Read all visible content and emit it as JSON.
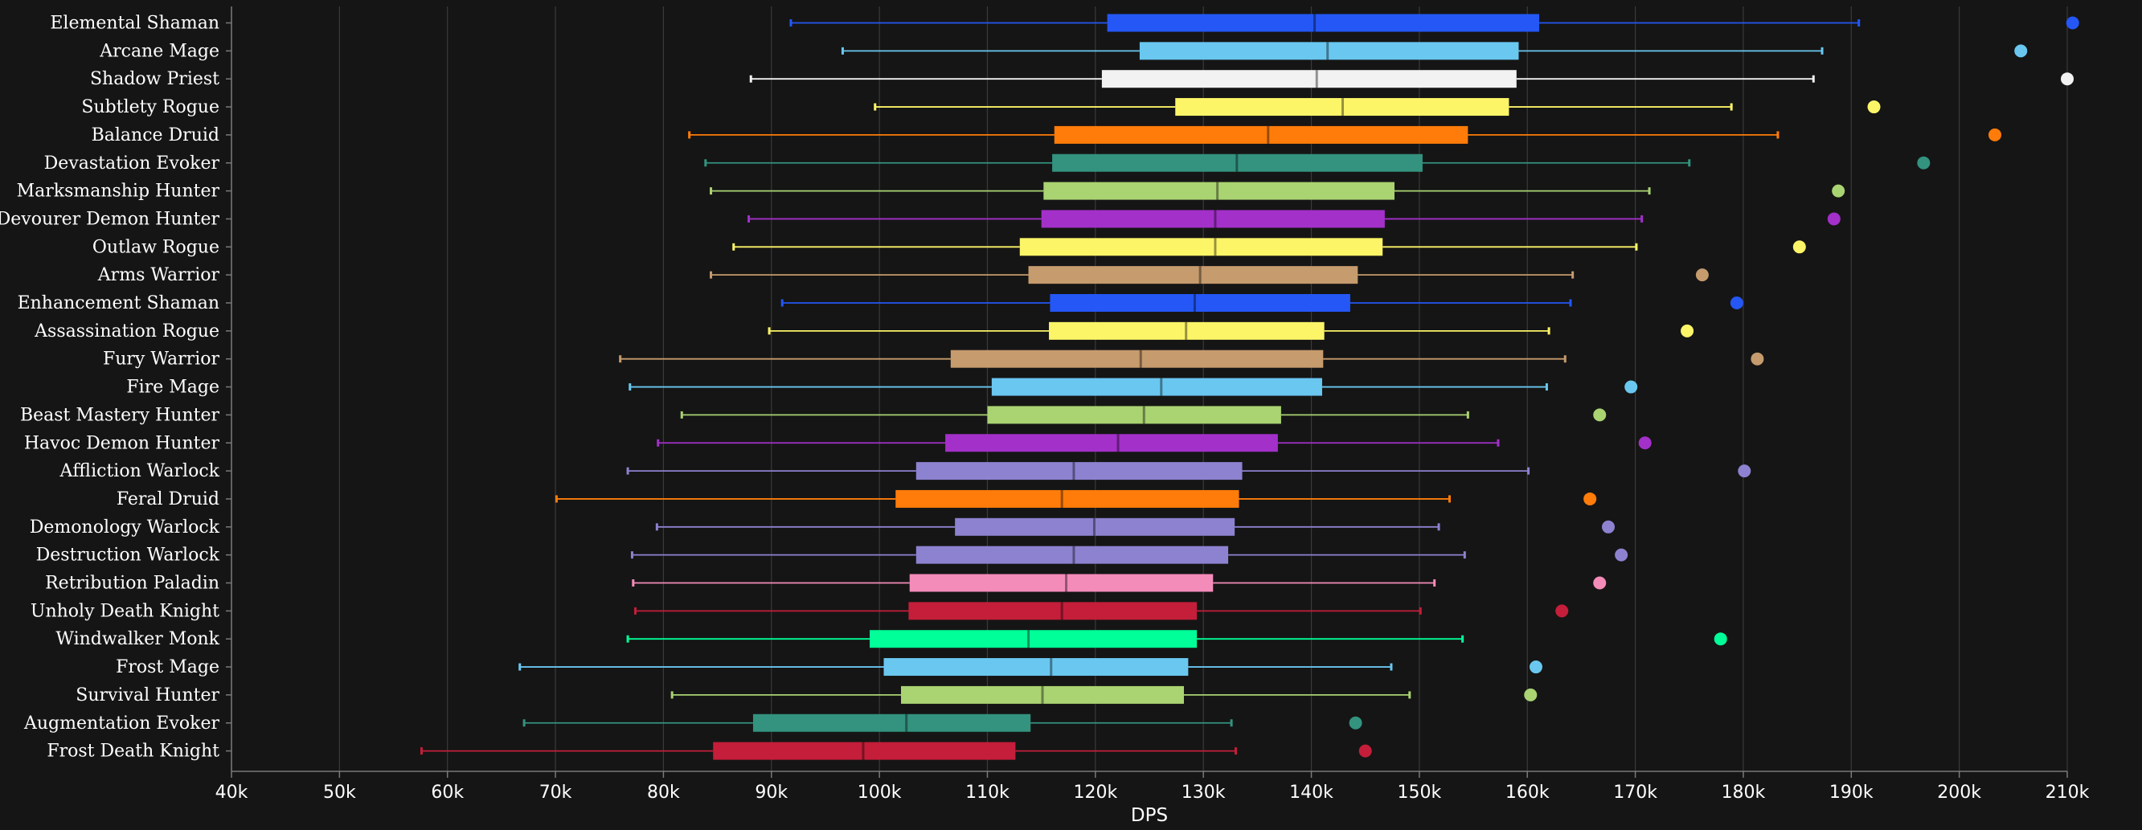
{
  "chart_data": {
    "type": "box",
    "orientation": "horizontal",
    "xlabel": "DPS",
    "xlim": [
      40000,
      210000
    ],
    "x_ticks": [
      40000,
      50000,
      60000,
      70000,
      80000,
      90000,
      100000,
      110000,
      120000,
      130000,
      140000,
      150000,
      160000,
      170000,
      180000,
      190000,
      200000,
      210000
    ],
    "x_tick_labels": [
      "40k",
      "50k",
      "60k",
      "70k",
      "80k",
      "90k",
      "100k",
      "110k",
      "120k",
      "130k",
      "140k",
      "150k",
      "160k",
      "170k",
      "180k",
      "190k",
      "200k",
      "210k"
    ],
    "grid": true,
    "legend": "none",
    "series": [
      {
        "name": "Elemental Shaman",
        "color": "#2457f5",
        "whisker_low": 91800,
        "q1": 121100,
        "median": 140300,
        "q3": 161100,
        "whisker_high": 190700,
        "max": 210500
      },
      {
        "name": "Arcane Mage",
        "color": "#6ac7f0",
        "whisker_low": 96600,
        "q1": 124100,
        "median": 141500,
        "q3": 159200,
        "whisker_high": 187300,
        "max": 205700
      },
      {
        "name": "Shadow Priest",
        "color": "#f2f2f2",
        "whisker_low": 88100,
        "q1": 120600,
        "median": 140500,
        "q3": 159000,
        "whisker_high": 186500,
        "max": 210000
      },
      {
        "name": "Subtlety Rogue",
        "color": "#fdf568",
        "whisker_low": 99600,
        "q1": 127400,
        "median": 142900,
        "q3": 158300,
        "whisker_high": 178900,
        "max": 192100
      },
      {
        "name": "Balance Druid",
        "color": "#ff7c0a",
        "whisker_low": 82400,
        "q1": 116200,
        "median": 136000,
        "q3": 154500,
        "whisker_high": 183200,
        "max": 203300
      },
      {
        "name": "Devastation Evoker",
        "color": "#33937f",
        "whisker_low": 83900,
        "q1": 116000,
        "median": 133100,
        "q3": 150300,
        "whisker_high": 175000,
        "max": 196700
      },
      {
        "name": "Marksmanship Hunter",
        "color": "#aad372",
        "whisker_low": 84400,
        "q1": 115200,
        "median": 131300,
        "q3": 147700,
        "whisker_high": 171300,
        "max": 188800
      },
      {
        "name": "Devourer Demon Hunter",
        "color": "#a330c9",
        "whisker_low": 87900,
        "q1": 115000,
        "median": 131100,
        "q3": 146800,
        "whisker_high": 170600,
        "max": 188400
      },
      {
        "name": "Outlaw Rogue",
        "color": "#fdf568",
        "whisker_low": 86500,
        "q1": 113000,
        "median": 131100,
        "q3": 146600,
        "whisker_high": 170100,
        "max": 185200
      },
      {
        "name": "Arms Warrior",
        "color": "#c69b6d",
        "whisker_low": 84400,
        "q1": 113800,
        "median": 129700,
        "q3": 144300,
        "whisker_high": 164200,
        "max": 176200
      },
      {
        "name": "Enhancement Shaman",
        "color": "#2457f5",
        "whisker_low": 91000,
        "q1": 115800,
        "median": 129200,
        "q3": 143600,
        "whisker_high": 164000,
        "max": 179400
      },
      {
        "name": "Assassination Rogue",
        "color": "#fdf568",
        "whisker_low": 89800,
        "q1": 115700,
        "median": 128400,
        "q3": 141200,
        "whisker_high": 162000,
        "max": 174800
      },
      {
        "name": "Fury Warrior",
        "color": "#c69b6d",
        "whisker_low": 76000,
        "q1": 106600,
        "median": 124200,
        "q3": 141100,
        "whisker_high": 163500,
        "max": 181300
      },
      {
        "name": "Fire Mage",
        "color": "#6ac7f0",
        "whisker_low": 76900,
        "q1": 110400,
        "median": 126100,
        "q3": 141000,
        "whisker_high": 161800,
        "max": 169600
      },
      {
        "name": "Beast Mastery Hunter",
        "color": "#aad372",
        "whisker_low": 81700,
        "q1": 110000,
        "median": 124500,
        "q3": 137200,
        "whisker_high": 154500,
        "max": 166700
      },
      {
        "name": "Havoc Demon Hunter",
        "color": "#a330c9",
        "whisker_low": 79500,
        "q1": 106100,
        "median": 122100,
        "q3": 136900,
        "whisker_high": 157300,
        "max": 170900
      },
      {
        "name": "Affliction Warlock",
        "color": "#8d82d0",
        "whisker_low": 76700,
        "q1": 103400,
        "median": 118000,
        "q3": 133600,
        "whisker_high": 160100,
        "max": 180100
      },
      {
        "name": "Feral Druid",
        "color": "#ff7c0a",
        "whisker_low": 70100,
        "q1": 101500,
        "median": 116900,
        "q3": 133300,
        "whisker_high": 152800,
        "max": 165800
      },
      {
        "name": "Demonology Warlock",
        "color": "#8d82d0",
        "whisker_low": 79400,
        "q1": 107000,
        "median": 119900,
        "q3": 132900,
        "whisker_high": 151800,
        "max": 167500
      },
      {
        "name": "Destruction Warlock",
        "color": "#8d82d0",
        "whisker_low": 77100,
        "q1": 103400,
        "median": 118000,
        "q3": 132300,
        "whisker_high": 154200,
        "max": 168700
      },
      {
        "name": "Retribution Paladin",
        "color": "#f48cba",
        "whisker_low": 77200,
        "q1": 102800,
        "median": 117300,
        "q3": 130900,
        "whisker_high": 151400,
        "max": 166700
      },
      {
        "name": "Unholy Death Knight",
        "color": "#c41e3a",
        "whisker_low": 77400,
        "q1": 102700,
        "median": 116900,
        "q3": 129400,
        "whisker_high": 150100,
        "max": 163200
      },
      {
        "name": "Windwalker Monk",
        "color": "#00ff98",
        "whisker_low": 76700,
        "q1": 99100,
        "median": 113800,
        "q3": 129400,
        "whisker_high": 154000,
        "max": 177900
      },
      {
        "name": "Frost Mage",
        "color": "#6ac7f0",
        "whisker_low": 66700,
        "q1": 100400,
        "median": 115900,
        "q3": 128600,
        "whisker_high": 147400,
        "max": 160800
      },
      {
        "name": "Survival Hunter",
        "color": "#aad372",
        "whisker_low": 80800,
        "q1": 102000,
        "median": 115100,
        "q3": 128200,
        "whisker_high": 149100,
        "max": 160300
      },
      {
        "name": "Augmentation Evoker",
        "color": "#33937f",
        "whisker_low": 67100,
        "q1": 88300,
        "median": 102500,
        "q3": 114000,
        "whisker_high": 132600,
        "max": 144100
      },
      {
        "name": "Frost Death Knight",
        "color": "#c41e3a",
        "whisker_low": 57600,
        "q1": 84600,
        "median": 98500,
        "q3": 112600,
        "whisker_high": 133000,
        "max": 145000
      }
    ]
  }
}
